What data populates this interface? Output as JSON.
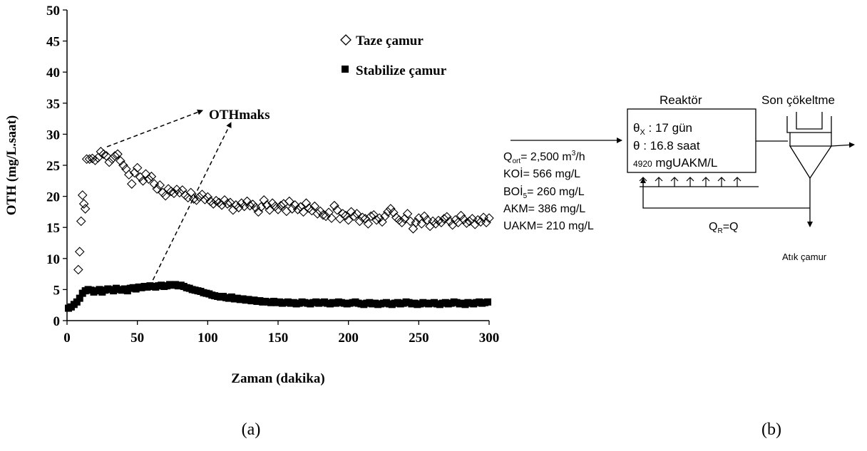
{
  "chart_data": {
    "type": "scatter",
    "xlabel": "Zaman (dakika)",
    "ylabel": "OTH (mg/L.saat)",
    "xlim": [
      0,
      300
    ],
    "ylim": [
      0,
      50
    ],
    "x_ticks": [
      "0",
      "50",
      "100",
      "150",
      "200",
      "250",
      "300"
    ],
    "y_ticks": [
      "0",
      "5",
      "10",
      "15",
      "20",
      "25",
      "30",
      "35",
      "40",
      "45",
      "50"
    ],
    "grid": false,
    "legend_position": "top-right",
    "annotation": "OTHmaks",
    "series": [
      {
        "name": "Taze çamur",
        "marker": "open-diamond",
        "x": [
          8,
          9,
          10,
          11,
          12,
          13,
          14,
          16,
          18,
          20,
          22,
          24,
          26,
          28,
          30,
          32,
          34,
          36,
          38,
          40,
          42,
          44,
          46,
          48,
          50,
          52,
          54,
          56,
          58,
          60,
          62,
          64,
          66,
          68,
          70,
          72,
          74,
          76,
          78,
          80,
          82,
          84,
          86,
          88,
          90,
          92,
          94,
          96,
          98,
          100,
          102,
          104,
          106,
          108,
          110,
          112,
          114,
          116,
          118,
          120,
          122,
          124,
          126,
          128,
          130,
          132,
          134,
          136,
          138,
          140,
          142,
          144,
          146,
          148,
          150,
          152,
          154,
          156,
          158,
          160,
          162,
          164,
          166,
          168,
          170,
          172,
          174,
          176,
          178,
          180,
          182,
          184,
          186,
          188,
          190,
          192,
          194,
          196,
          198,
          200,
          202,
          204,
          206,
          208,
          210,
          212,
          214,
          216,
          218,
          220,
          222,
          224,
          226,
          228,
          230,
          232,
          234,
          236,
          238,
          240,
          242,
          244,
          246,
          248,
          250,
          252,
          254,
          256,
          258,
          260,
          262,
          264,
          266,
          268,
          270,
          272,
          274,
          276,
          278,
          280,
          282,
          284,
          286,
          288,
          290,
          292,
          294,
          296,
          298,
          300
        ],
        "y": [
          8.2,
          11.1,
          16.0,
          20.2,
          18.8,
          18.0,
          26.0,
          26.0,
          26.1,
          25.8,
          26.2,
          27.2,
          26.8,
          26.5,
          25.5,
          26.0,
          26.5,
          26.8,
          25.7,
          25.0,
          24.4,
          23.5,
          22.0,
          23.8,
          24.6,
          23.1,
          22.5,
          23.6,
          22.8,
          23.2,
          22.0,
          21.2,
          21.8,
          20.6,
          20.1,
          21.2,
          20.8,
          20.5,
          21.1,
          20.6,
          21.0,
          20.2,
          19.8,
          20.6,
          19.6,
          19.4,
          19.9,
          20.3,
          19.5,
          19.9,
          19.2,
          18.8,
          19.3,
          19.0,
          18.6,
          19.4,
          18.8,
          19.0,
          17.8,
          18.6,
          18.2,
          18.9,
          18.4,
          19.2,
          18.5,
          18.7,
          18.2,
          17.5,
          18.3,
          19.4,
          18.6,
          17.8,
          18.9,
          18.4,
          17.9,
          18.5,
          18.8,
          17.6,
          19.2,
          18.0,
          18.6,
          17.9,
          18.3,
          17.5,
          18.9,
          18.1,
          17.7,
          18.4,
          17.2,
          17.6,
          17.0,
          16.8,
          17.4,
          16.5,
          18.5,
          17.8,
          16.4,
          17.2,
          16.9,
          16.2,
          17.5,
          16.8,
          17.2,
          16.0,
          16.6,
          16.4,
          15.6,
          16.8,
          17.0,
          16.2,
          16.5,
          15.9,
          16.8,
          17.5,
          18.0,
          17.4,
          16.6,
          16.2,
          15.8,
          16.4,
          17.2,
          16.0,
          14.8,
          15.8,
          16.5,
          15.6,
          16.8,
          16.2,
          15.2,
          16.0,
          15.6,
          16.1,
          15.8,
          16.4,
          16.7,
          16.0,
          15.4,
          16.2,
          15.8,
          16.9,
          16.3,
          15.7,
          16.0,
          16.4,
          15.5,
          16.2,
          15.9,
          16.6,
          15.8,
          16.5
        ]
      },
      {
        "name": "Stabilize çamur",
        "marker": "filled-square",
        "x": [
          1,
          3,
          5,
          7,
          9,
          11,
          13,
          15,
          17,
          19,
          21,
          23,
          25,
          27,
          29,
          31,
          33,
          35,
          37,
          39,
          41,
          43,
          45,
          47,
          49,
          51,
          53,
          55,
          57,
          59,
          61,
          63,
          65,
          67,
          69,
          71,
          73,
          75,
          77,
          79,
          81,
          83,
          85,
          87,
          89,
          91,
          93,
          95,
          97,
          99,
          101,
          103,
          105,
          107,
          109,
          111,
          113,
          115,
          117,
          119,
          121,
          123,
          125,
          127,
          129,
          131,
          133,
          135,
          137,
          139,
          141,
          143,
          145,
          147,
          149,
          151,
          153,
          155,
          157,
          159,
          161,
          163,
          165,
          167,
          169,
          171,
          173,
          175,
          177,
          179,
          181,
          183,
          185,
          187,
          189,
          191,
          193,
          195,
          197,
          199,
          201,
          203,
          205,
          207,
          209,
          211,
          213,
          215,
          217,
          219,
          221,
          223,
          225,
          227,
          229,
          231,
          233,
          235,
          237,
          239,
          241,
          243,
          245,
          247,
          249,
          251,
          253,
          255,
          257,
          259,
          261,
          263,
          265,
          267,
          269,
          271,
          273,
          275,
          277,
          279,
          281,
          283,
          285,
          287,
          289,
          291,
          293,
          295,
          297,
          299
        ],
        "y": [
          2.0,
          2.2,
          2.6,
          3.0,
          3.6,
          4.4,
          4.8,
          5.0,
          4.9,
          4.6,
          4.8,
          5.0,
          4.6,
          4.9,
          5.1,
          5.0,
          4.8,
          5.2,
          5.0,
          4.9,
          5.1,
          4.8,
          5.2,
          5.3,
          5.1,
          5.4,
          5.3,
          5.5,
          5.4,
          5.6,
          5.5,
          5.4,
          5.6,
          5.7,
          5.5,
          5.6,
          5.8,
          5.7,
          5.8,
          5.6,
          5.7,
          5.5,
          5.3,
          5.2,
          5.0,
          4.9,
          4.8,
          4.7,
          4.5,
          4.4,
          4.3,
          4.1,
          4.0,
          3.9,
          3.8,
          3.9,
          3.7,
          3.6,
          3.8,
          3.5,
          3.6,
          3.4,
          3.5,
          3.3,
          3.4,
          3.2,
          3.3,
          3.1,
          3.2,
          3.0,
          3.1,
          3.0,
          2.9,
          3.1,
          2.9,
          3.0,
          2.8,
          2.9,
          3.0,
          2.8,
          2.9,
          2.7,
          2.8,
          3.0,
          2.9,
          2.8,
          2.7,
          2.9,
          3.0,
          2.8,
          2.9,
          3.0,
          2.8,
          2.7,
          2.9,
          2.8,
          3.0,
          2.9,
          2.8,
          2.7,
          2.8,
          2.9,
          3.0,
          2.8,
          2.7,
          2.6,
          2.8,
          2.9,
          2.7,
          2.8,
          2.6,
          2.7,
          2.8,
          2.9,
          2.7,
          2.6,
          2.8,
          2.9,
          2.7,
          2.8,
          3.0,
          2.9,
          2.7,
          2.8,
          2.6,
          2.7,
          2.9,
          2.8,
          2.7,
          2.8,
          2.9,
          2.7,
          2.6,
          2.8,
          2.9,
          2.7,
          2.8,
          3.0,
          2.9,
          2.7,
          2.8,
          2.6,
          2.9,
          2.8,
          2.7,
          2.9,
          3.0,
          2.8,
          2.9,
          3.0
        ]
      }
    ]
  },
  "diagram": {
    "reactor_title": "Reaktör",
    "settler_title": "Son çökeltme",
    "theta_x_symbol": "θ",
    "theta_x_sub": "X",
    "theta_x_value": " : 17 gün",
    "theta_symbol": "θ",
    "theta_value": "  : 16.8 saat",
    "mlvss_num": "4920",
    "mlvss_unit": " mgUAKM/L",
    "inflow": {
      "q_prefix": "Q",
      "q_sub": "ort",
      "q_value": "= 2,500 m",
      "q_sup": "3",
      "q_tail": "/h",
      "koi": "KOİ= 566 mg/L",
      "boi_prefix": "BOİ",
      "boi_sub": "5",
      "boi_value": "= 260 mg/L",
      "akm": "AKM= 386 mg/L",
      "uakm": "UAKM= 210 mg/L"
    },
    "recycle_prefix": "Q",
    "recycle_sub": "R",
    "recycle_tail": "=Q",
    "waste_label": "Atık çamur"
  },
  "labels": {
    "a": "(a)",
    "b": "(b)"
  }
}
